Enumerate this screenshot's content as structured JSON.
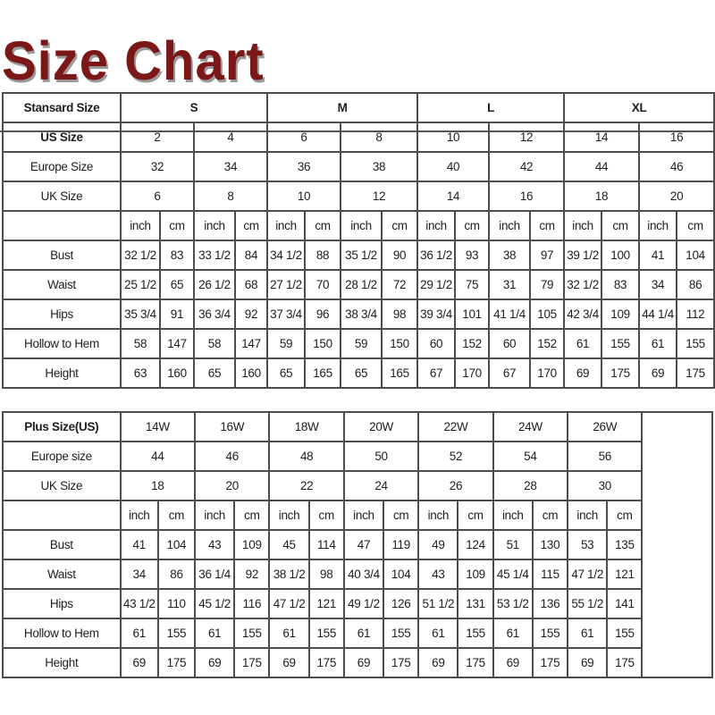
{
  "title": "Size Chart",
  "standard": {
    "header_label": "Stansard Size",
    "groups": [
      "S",
      "M",
      "L",
      "XL"
    ],
    "size_rows": [
      {
        "label": "US Size",
        "values": [
          "2",
          "4",
          "6",
          "8",
          "10",
          "12",
          "14",
          "16"
        ]
      },
      {
        "label": "Europe Size",
        "values": [
          "32",
          "34",
          "36",
          "38",
          "40",
          "42",
          "44",
          "46"
        ]
      },
      {
        "label": "UK Size",
        "values": [
          "6",
          "8",
          "10",
          "12",
          "14",
          "16",
          "18",
          "20"
        ]
      }
    ],
    "unit_labels": [
      "inch",
      "cm"
    ],
    "measure_rows": [
      {
        "label": "Bust",
        "values": [
          "32 1/2",
          "83",
          "33 1/2",
          "84",
          "34 1/2",
          "88",
          "35 1/2",
          "90",
          "36 1/2",
          "93",
          "38",
          "97",
          "39 1/2",
          "100",
          "41",
          "104"
        ]
      },
      {
        "label": "Waist",
        "values": [
          "25 1/2",
          "65",
          "26 1/2",
          "68",
          "27 1/2",
          "70",
          "28 1/2",
          "72",
          "29 1/2",
          "75",
          "31",
          "79",
          "32 1/2",
          "83",
          "34",
          "86"
        ]
      },
      {
        "label": "Hips",
        "values": [
          "35 3/4",
          "91",
          "36 3/4",
          "92",
          "37 3/4",
          "96",
          "38 3/4",
          "98",
          "39 3/4",
          "101",
          "41 1/4",
          "105",
          "42 3/4",
          "109",
          "44 1/4",
          "112"
        ]
      },
      {
        "label": "Hollow to Hem",
        "values": [
          "58",
          "147",
          "58",
          "147",
          "59",
          "150",
          "59",
          "150",
          "60",
          "152",
          "60",
          "152",
          "61",
          "155",
          "61",
          "155"
        ]
      },
      {
        "label": "Height",
        "values": [
          "63",
          "160",
          "65",
          "160",
          "65",
          "165",
          "65",
          "165",
          "67",
          "170",
          "67",
          "170",
          "69",
          "175",
          "69",
          "175"
        ]
      }
    ]
  },
  "plus": {
    "header_label": "Plus Size(US)",
    "sizes": [
      "14W",
      "16W",
      "18W",
      "20W",
      "22W",
      "24W",
      "26W"
    ],
    "size_rows": [
      {
        "label": "Europe size",
        "values": [
          "44",
          "46",
          "48",
          "50",
          "52",
          "54",
          "56"
        ]
      },
      {
        "label": "UK Size",
        "values": [
          "18",
          "20",
          "22",
          "24",
          "26",
          "28",
          "30"
        ]
      }
    ],
    "unit_labels": [
      "inch",
      "cm"
    ],
    "measure_rows": [
      {
        "label": "Bust",
        "values": [
          "41",
          "104",
          "43",
          "109",
          "45",
          "114",
          "47",
          "119",
          "49",
          "124",
          "51",
          "130",
          "53",
          "135"
        ]
      },
      {
        "label": "Waist",
        "values": [
          "34",
          "86",
          "36 1/4",
          "92",
          "38 1/2",
          "98",
          "40 3/4",
          "104",
          "43",
          "109",
          "45 1/4",
          "115",
          "47 1/2",
          "121"
        ]
      },
      {
        "label": "Hips",
        "values": [
          "43 1/2",
          "110",
          "45 1/2",
          "116",
          "47 1/2",
          "121",
          "49 1/2",
          "126",
          "51 1/2",
          "131",
          "53 1/2",
          "136",
          "55 1/2",
          "141"
        ]
      },
      {
        "label": "Hollow to Hem",
        "values": [
          "61",
          "155",
          "61",
          "155",
          "61",
          "155",
          "61",
          "155",
          "61",
          "155",
          "61",
          "155",
          "61",
          "155"
        ]
      },
      {
        "label": "Height",
        "values": [
          "69",
          "175",
          "69",
          "175",
          "69",
          "175",
          "69",
          "175",
          "69",
          "175",
          "69",
          "175",
          "69",
          "175"
        ]
      }
    ]
  },
  "colors": {
    "title": "#7b1717",
    "border": "#4d4d4d"
  }
}
